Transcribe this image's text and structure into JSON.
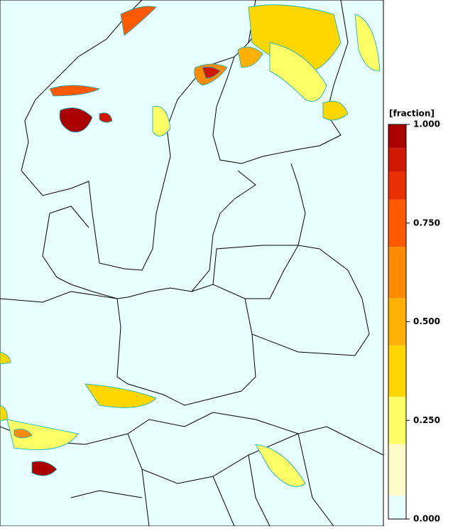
{
  "colorbar": {
    "label": "[fraction]",
    "range": [
      0,
      1
    ],
    "levels": [
      0,
      0.06,
      0.19,
      0.31,
      0.44,
      0.56,
      0.69,
      0.81,
      0.88,
      0.94,
      1
    ],
    "colors": [
      "#e8ffff",
      "#fffbc8",
      "#ffff66",
      "#ffd700",
      "#ffb000",
      "#ff8c00",
      "#ff5a00",
      "#e83000",
      "#d01800",
      "#aa0000"
    ],
    "ticks": [
      {
        "value": 1,
        "label": "1.000"
      },
      {
        "value": 0.75,
        "label": "0.750"
      },
      {
        "value": 0.5,
        "label": "0.500"
      },
      {
        "value": 0.25,
        "label": "0.250"
      },
      {
        "value": 0,
        "label": "0.000"
      }
    ]
  }
}
